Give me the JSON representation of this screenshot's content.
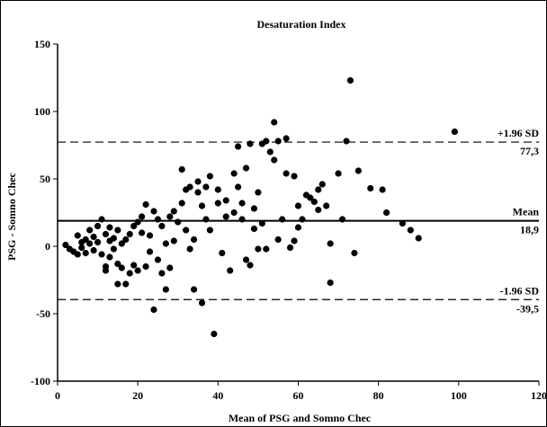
{
  "chart_data": {
    "type": "scatter",
    "title": "Desaturation Index",
    "xlabel": "Mean of PSG and Somno Chec",
    "ylabel": "PSG - Somno Chec",
    "xlim": [
      0,
      120
    ],
    "ylim": [
      -100,
      150
    ],
    "xticks": [
      "0",
      "20",
      "40",
      "60",
      "80",
      "100",
      "120"
    ],
    "yticks": [
      "-100",
      "-50",
      "0",
      "50",
      "100",
      "150"
    ],
    "grid": false,
    "reference_lines": [
      {
        "label": "+1.96 SD",
        "value_label": "77,3",
        "y": 77.3,
        "style": "dashed"
      },
      {
        "label": "Mean",
        "value_label": "18,9",
        "y": 18.9,
        "style": "solid"
      },
      {
        "label": "-1.96 SD",
        "value_label": "-39,5",
        "y": -39.5,
        "style": "dashed"
      }
    ],
    "points": [
      [
        2,
        1
      ],
      [
        3,
        -2
      ],
      [
        4,
        -4
      ],
      [
        5,
        -6
      ],
      [
        5,
        8
      ],
      [
        6,
        3
      ],
      [
        6,
        -1
      ],
      [
        7,
        -5
      ],
      [
        7,
        5
      ],
      [
        8,
        2
      ],
      [
        8,
        12
      ],
      [
        9,
        7
      ],
      [
        9,
        -3
      ],
      [
        10,
        15
      ],
      [
        10,
        3
      ],
      [
        11,
        20
      ],
      [
        11,
        -6
      ],
      [
        12,
        9
      ],
      [
        12,
        -15
      ],
      [
        12,
        -18
      ],
      [
        13,
        14
      ],
      [
        13,
        4
      ],
      [
        13,
        -8
      ],
      [
        14,
        6
      ],
      [
        14,
        -2
      ],
      [
        15,
        12
      ],
      [
        15,
        -13
      ],
      [
        15,
        -28
      ],
      [
        16,
        -16
      ],
      [
        16,
        2
      ],
      [
        17,
        -28
      ],
      [
        17,
        5
      ],
      [
        18,
        -20
      ],
      [
        18,
        9
      ],
      [
        19,
        15
      ],
      [
        19,
        -14
      ],
      [
        20,
        18
      ],
      [
        20,
        -18
      ],
      [
        21,
        22
      ],
      [
        21,
        10
      ],
      [
        22,
        -15
      ],
      [
        22,
        31
      ],
      [
        23,
        8
      ],
      [
        23,
        -4
      ],
      [
        24,
        26
      ],
      [
        24,
        -47
      ],
      [
        25,
        20
      ],
      [
        25,
        -10
      ],
      [
        26,
        15
      ],
      [
        26,
        -20
      ],
      [
        27,
        2
      ],
      [
        27,
        -32
      ],
      [
        28,
        22
      ],
      [
        28,
        -16
      ],
      [
        29,
        26
      ],
      [
        29,
        4
      ],
      [
        30,
        18
      ],
      [
        31,
        57
      ],
      [
        31,
        32
      ],
      [
        32,
        42
      ],
      [
        32,
        12
      ],
      [
        33,
        44
      ],
      [
        33,
        -2
      ],
      [
        34,
        5
      ],
      [
        34,
        -32
      ],
      [
        35,
        40
      ],
      [
        35,
        48
      ],
      [
        36,
        30
      ],
      [
        36,
        -42
      ],
      [
        37,
        20
      ],
      [
        37,
        44
      ],
      [
        38,
        52
      ],
      [
        38,
        12
      ],
      [
        39,
        -65
      ],
      [
        40,
        32
      ],
      [
        40,
        42
      ],
      [
        41,
        -5
      ],
      [
        42,
        34
      ],
      [
        42,
        22
      ],
      [
        43,
        -18
      ],
      [
        44,
        54
      ],
      [
        44,
        25
      ],
      [
        45,
        74
      ],
      [
        45,
        44
      ],
      [
        46,
        32
      ],
      [
        46,
        20
      ],
      [
        47,
        -10
      ],
      [
        47,
        58
      ],
      [
        48,
        -14
      ],
      [
        48,
        76
      ],
      [
        49,
        13
      ],
      [
        49,
        28
      ],
      [
        50,
        -2
      ],
      [
        50,
        40
      ],
      [
        51,
        76
      ],
      [
        51,
        17
      ],
      [
        52,
        -2
      ],
      [
        52,
        78
      ],
      [
        53,
        70
      ],
      [
        54,
        92
      ],
      [
        54,
        64
      ],
      [
        55,
        78
      ],
      [
        55,
        5
      ],
      [
        56,
        20
      ],
      [
        57,
        54
      ],
      [
        57,
        80
      ],
      [
        58,
        -1
      ],
      [
        59,
        4
      ],
      [
        59,
        52
      ],
      [
        60,
        14
      ],
      [
        60,
        30
      ],
      [
        61,
        20
      ],
      [
        62,
        38
      ],
      [
        63,
        36
      ],
      [
        64,
        33
      ],
      [
        65,
        27
      ],
      [
        65,
        42
      ],
      [
        66,
        46
      ],
      [
        67,
        30
      ],
      [
        68,
        -27
      ],
      [
        68,
        2
      ],
      [
        70,
        54
      ],
      [
        71,
        20
      ],
      [
        72,
        78
      ],
      [
        73,
        123
      ],
      [
        74,
        -5
      ],
      [
        75,
        56
      ],
      [
        78,
        43
      ],
      [
        81,
        42
      ],
      [
        82,
        25
      ],
      [
        86,
        17
      ],
      [
        88,
        12
      ],
      [
        90,
        6
      ],
      [
        99,
        85
      ]
    ]
  }
}
